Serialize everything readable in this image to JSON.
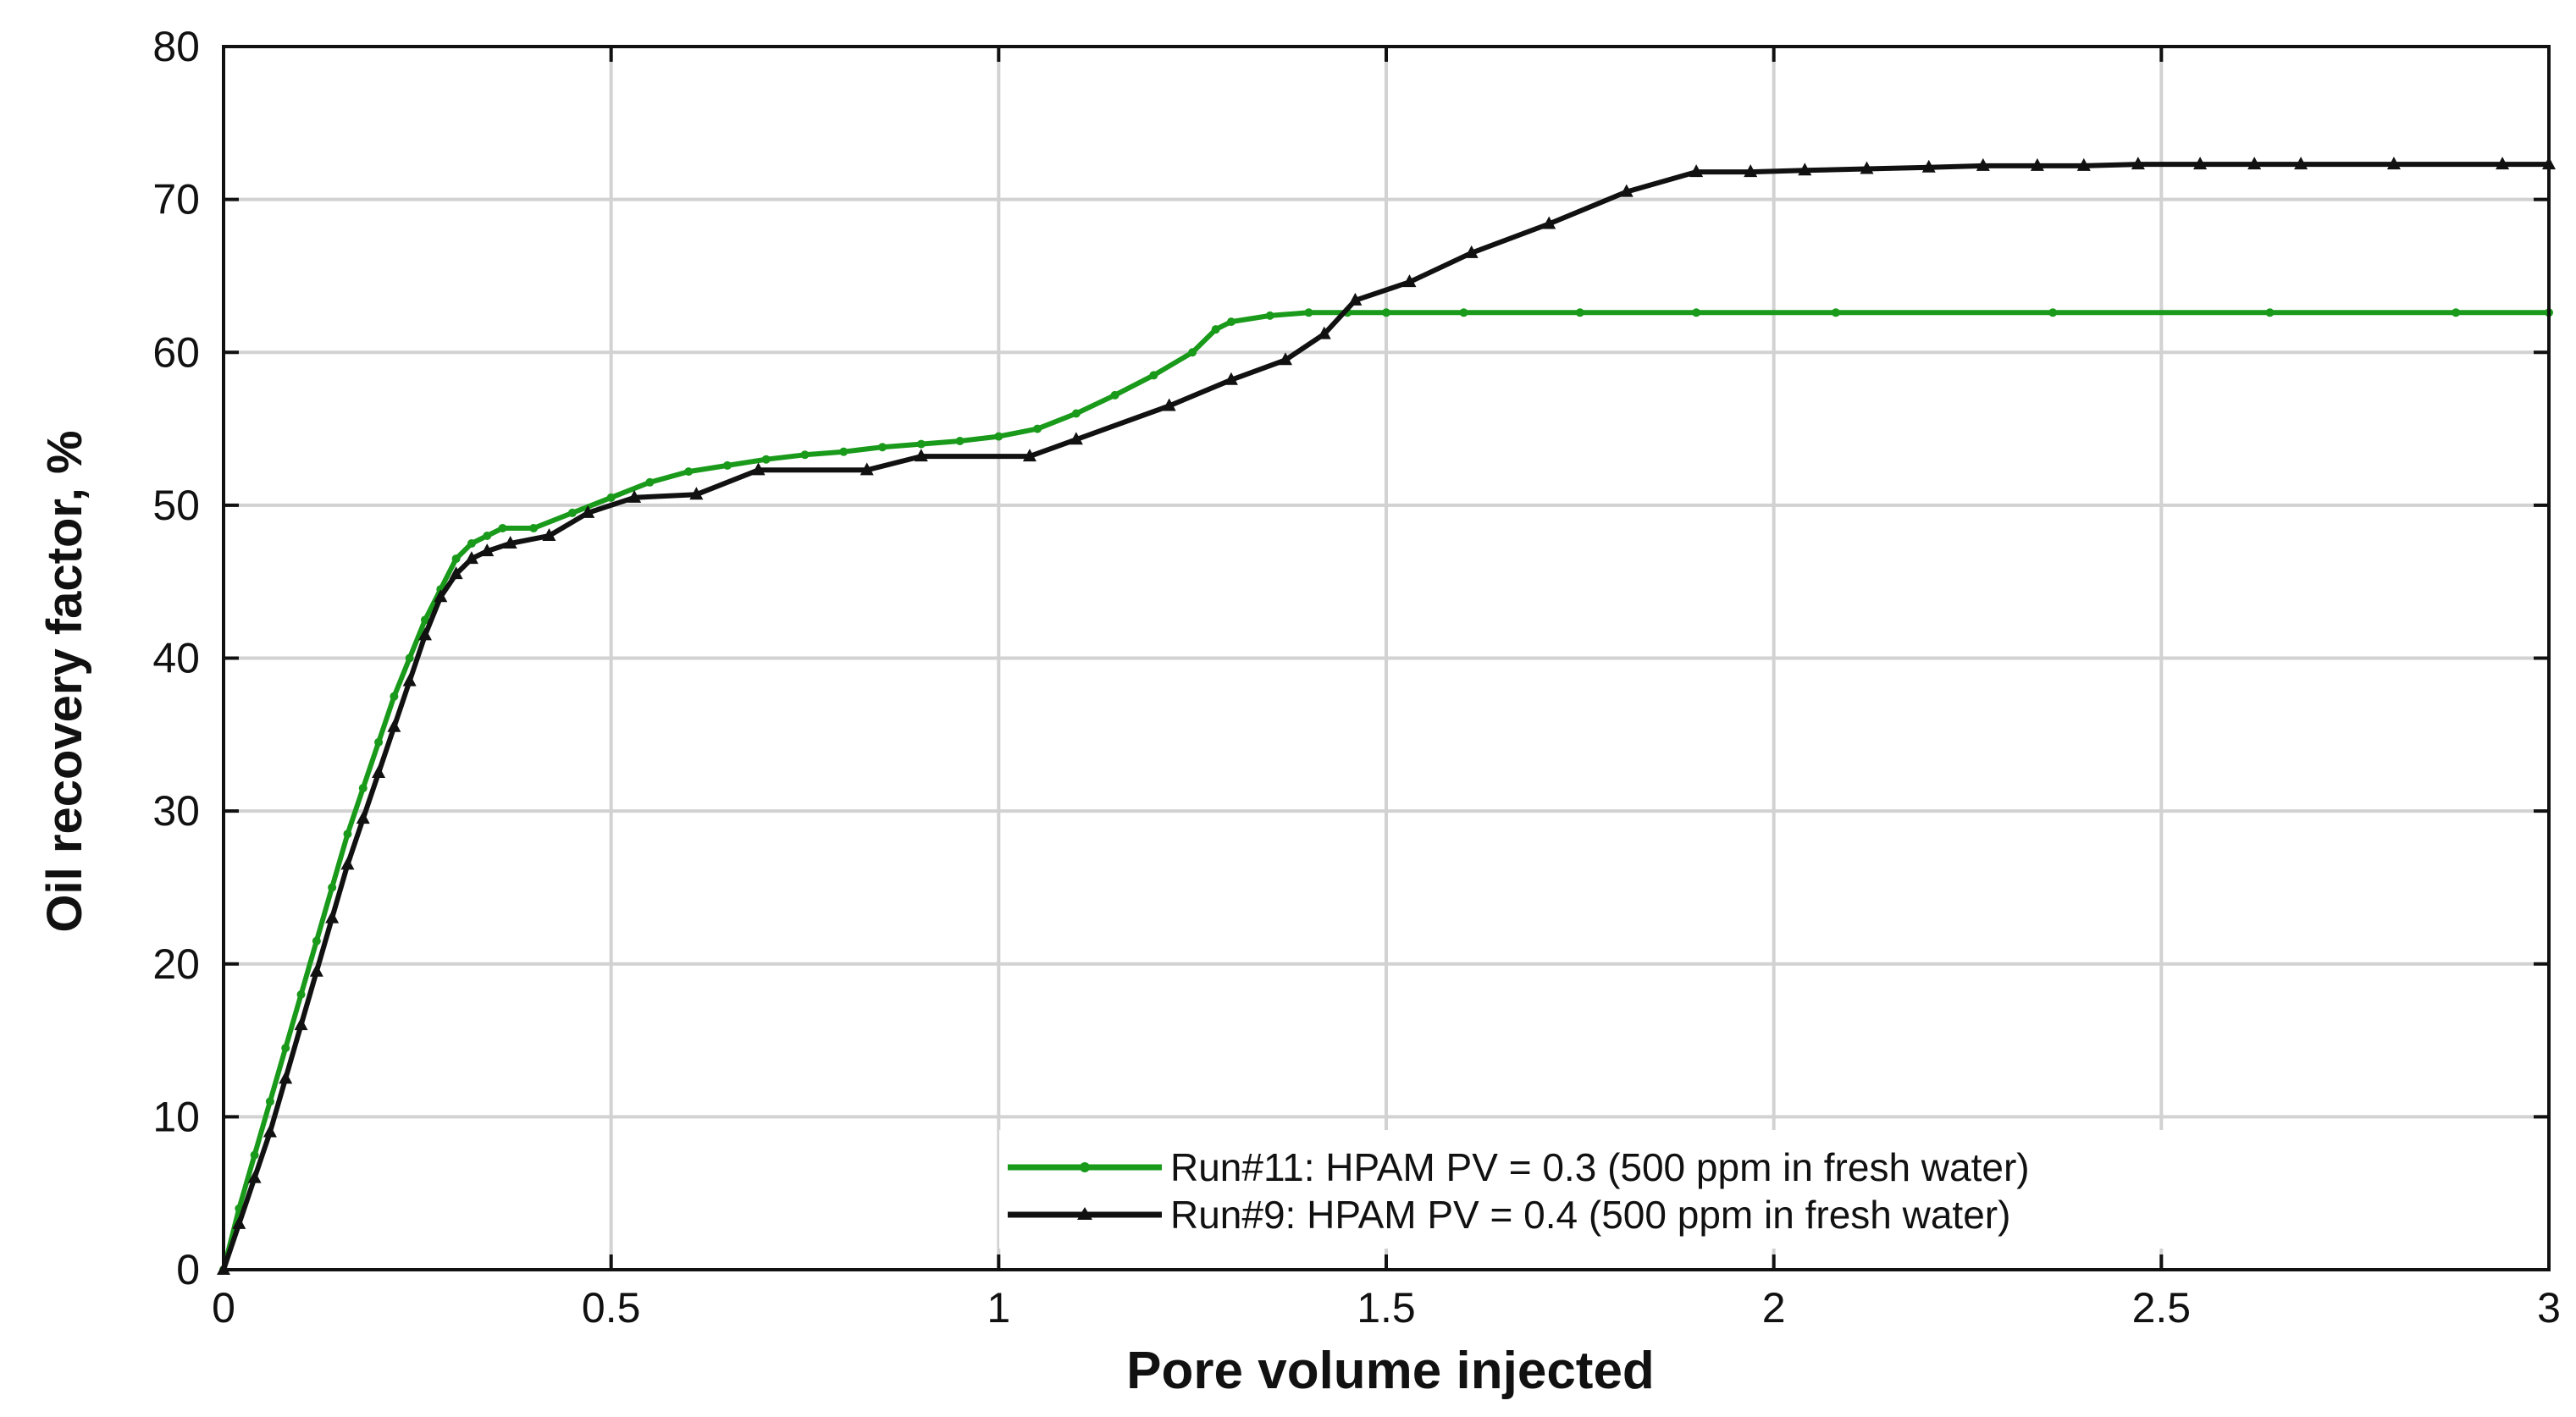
{
  "chart_data": {
    "type": "line",
    "title": "",
    "xlabel": "Pore volume injected",
    "ylabel": "Oil recovery factor, %",
    "xlim": [
      0,
      3
    ],
    "ylim": [
      0,
      80
    ],
    "xticks": [
      0,
      0.5,
      1,
      1.5,
      2,
      2.5,
      3
    ],
    "xtick_labels": [
      "0",
      "0.5",
      "1",
      "1.5",
      "2",
      "2.5",
      "3"
    ],
    "yticks": [
      0,
      10,
      20,
      30,
      40,
      50,
      60,
      70,
      80
    ],
    "ytick_labels": [
      "0",
      "10",
      "20",
      "30",
      "40",
      "50",
      "60",
      "70",
      "80"
    ],
    "grid": true,
    "legend_position": "bottom-right",
    "series": [
      {
        "name": "Run#11: HPAM PV = 0.3 (500 ppm in fresh water)",
        "color": "#1a9a1a",
        "marker": "dot",
        "x": [
          0,
          0.02,
          0.04,
          0.06,
          0.08,
          0.1,
          0.12,
          0.14,
          0.16,
          0.18,
          0.2,
          0.22,
          0.24,
          0.26,
          0.28,
          0.3,
          0.32,
          0.34,
          0.36,
          0.4,
          0.45,
          0.5,
          0.55,
          0.6,
          0.65,
          0.7,
          0.75,
          0.8,
          0.85,
          0.9,
          0.95,
          1.0,
          1.05,
          1.1,
          1.15,
          1.2,
          1.25,
          1.28,
          1.3,
          1.35,
          1.4,
          1.45,
          1.5,
          1.6,
          1.75,
          1.9,
          2.08,
          2.36,
          2.64,
          2.88,
          3.0
        ],
        "y": [
          0,
          4,
          7.5,
          11,
          14.5,
          18,
          21.5,
          25,
          28.5,
          31.5,
          34.5,
          37.5,
          40,
          42.5,
          44.5,
          46.5,
          47.5,
          48,
          48.5,
          48.5,
          49.5,
          50.5,
          51.5,
          52.2,
          52.6,
          53,
          53.3,
          53.5,
          53.8,
          54,
          54.2,
          54.5,
          55,
          56,
          57.2,
          58.5,
          60,
          61.5,
          62,
          62.4,
          62.6,
          62.6,
          62.6,
          62.6,
          62.6,
          62.6,
          62.6,
          62.6,
          62.6,
          62.6,
          62.6
        ]
      },
      {
        "name": "Run#9: HPAM PV = 0.4 (500 ppm in fresh water)",
        "color": "#111111",
        "marker": "triangle",
        "x": [
          0,
          0.02,
          0.04,
          0.06,
          0.08,
          0.1,
          0.12,
          0.14,
          0.16,
          0.18,
          0.2,
          0.22,
          0.24,
          0.26,
          0.28,
          0.3,
          0.32,
          0.34,
          0.37,
          0.42,
          0.47,
          0.53,
          0.61,
          0.69,
          0.83,
          0.9,
          1.04,
          1.1,
          1.22,
          1.3,
          1.37,
          1.42,
          1.46,
          1.53,
          1.61,
          1.71,
          1.81,
          1.9,
          1.97,
          2.04,
          2.12,
          2.2,
          2.27,
          2.34,
          2.4,
          2.47,
          2.55,
          2.62,
          2.68,
          2.8,
          2.94,
          3.0
        ],
        "y": [
          0,
          3,
          6,
          9,
          12.5,
          16,
          19.5,
          23,
          26.5,
          29.5,
          32.5,
          35.5,
          38.5,
          41.5,
          44,
          45.5,
          46.5,
          47,
          47.5,
          48,
          49.5,
          50.5,
          50.7,
          52.3,
          52.3,
          53.2,
          53.2,
          54.3,
          56.5,
          58.2,
          59.5,
          61.2,
          63.4,
          64.6,
          66.5,
          68.4,
          70.5,
          71.8,
          71.8,
          71.9,
          72,
          72.1,
          72.2,
          72.2,
          72.2,
          72.3,
          72.3,
          72.3,
          72.3,
          72.3,
          72.3,
          72.3
        ]
      }
    ]
  }
}
